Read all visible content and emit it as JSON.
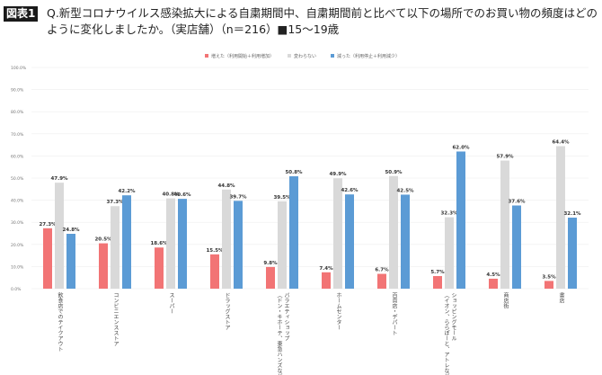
{
  "header": {
    "badge": "図表1",
    "title": "Q.新型コロナウイルス感染拡大による自粛期間中、自粛期間前と比べて以下の場所でのお買い物の頻度はどのように変化しましたか。（実店舗）（n＝216）■15～19歳"
  },
  "chart_data": {
    "type": "bar",
    "title": "",
    "legend_position": "top",
    "grid": true,
    "ylim": [
      0,
      100
    ],
    "yticks": [
      "0.0%",
      "10.0%",
      "20.0%",
      "30.0%",
      "40.0%",
      "50.0%",
      "60.0%",
      "70.0%",
      "80.0%",
      "90.0%",
      "100.0%"
    ],
    "categories": [
      "飲食店でのテイクアウト",
      "コンビニエンスストア",
      "スーパー",
      "ドラッグストア",
      "バラエティショップ\n（ドン・キホーテ、東急ハンズなど）",
      "ホームセンター",
      "百貨店・デパート",
      "ショッピングモール\n（イオン、ららぽーと、アトレなど）",
      "商店街",
      "書店"
    ],
    "series": [
      {
        "name": "増えた（利用開始＋利用増加）",
        "color": "#f27475",
        "values": [
          27.3,
          20.5,
          18.6,
          15.5,
          9.8,
          7.4,
          6.7,
          5.7,
          4.5,
          3.5
        ]
      },
      {
        "name": "変わらない",
        "color": "#d9d9d9",
        "values": [
          47.9,
          37.3,
          40.8,
          44.8,
          39.5,
          49.9,
          50.9,
          32.3,
          57.9,
          64.4
        ]
      },
      {
        "name": "減った（利用停止＋利用減少）",
        "color": "#5b9bd5",
        "values": [
          24.8,
          42.2,
          40.6,
          39.7,
          50.8,
          42.6,
          42.5,
          62.0,
          37.6,
          32.1
        ]
      }
    ]
  }
}
